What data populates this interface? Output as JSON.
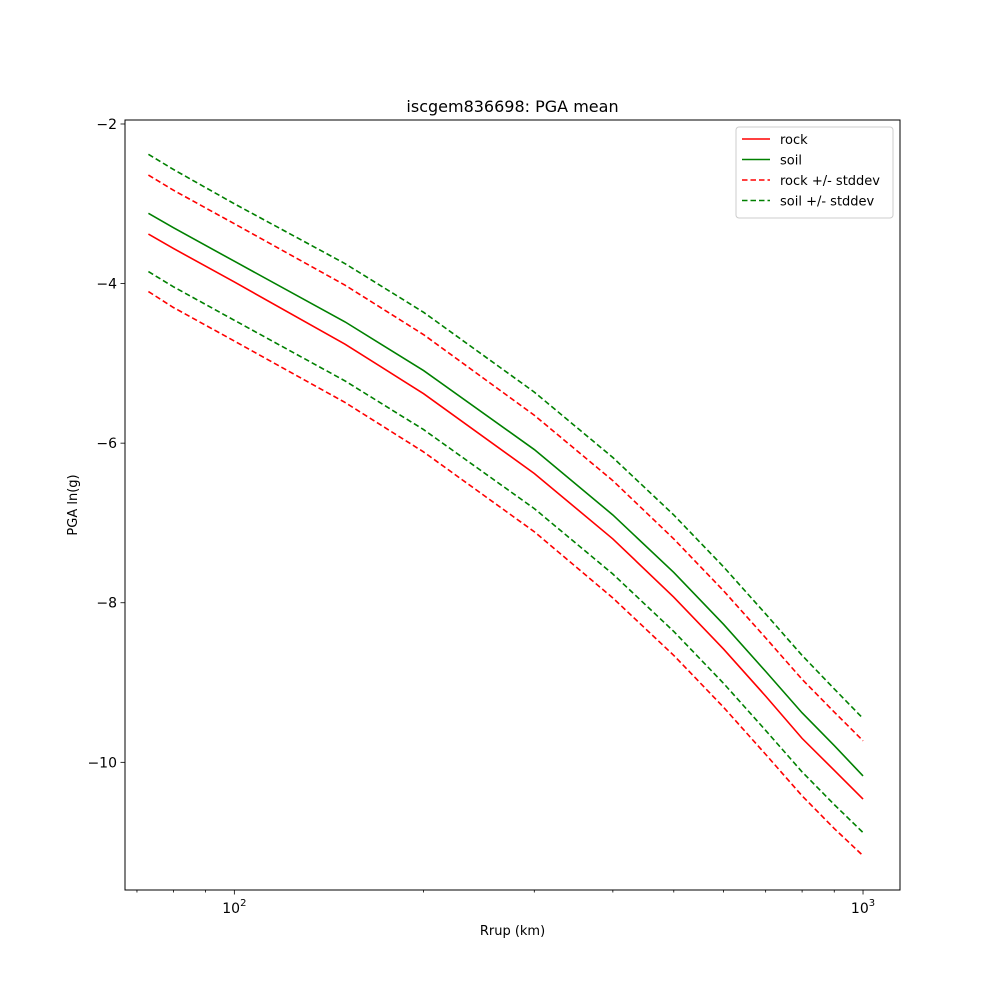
{
  "chart_data": {
    "type": "line",
    "title": "iscgem836698: PGA mean",
    "xlabel": "Rrup (km)",
    "ylabel": "PGA ln(g)",
    "xscale": "log",
    "xlim": [
      67,
      1145
    ],
    "ylim": [
      -11.6,
      -1.95
    ],
    "yticks": [
      -2,
      -4,
      -6,
      -8,
      -10
    ],
    "ytick_labels": [
      "−2",
      "−4",
      "−6",
      "−8",
      "−10"
    ],
    "xticks_major": [
      {
        "value": 100,
        "base": "10",
        "exp": "2"
      },
      {
        "value": 1000,
        "base": "10",
        "exp": "3"
      }
    ],
    "xticks_minor": [
      70,
      80,
      90,
      200,
      300,
      400,
      500,
      600,
      700,
      800,
      900
    ],
    "grid": false,
    "legend_position": "top-right",
    "x": [
      73,
      80,
      100,
      150,
      200,
      300,
      400,
      500,
      600,
      700,
      800,
      900,
      1000
    ],
    "series": [
      {
        "name": "rock",
        "color": "#ff0000",
        "dash": false,
        "values": [
          -3.38,
          -3.56,
          -3.98,
          -4.76,
          -5.38,
          -6.38,
          -7.2,
          -7.93,
          -8.58,
          -9.17,
          -9.7,
          -10.1,
          -10.46
        ]
      },
      {
        "name": "soil",
        "color": "#008000",
        "dash": false,
        "values": [
          -3.12,
          -3.3,
          -3.72,
          -4.48,
          -5.09,
          -6.08,
          -6.9,
          -7.62,
          -8.27,
          -8.86,
          -9.38,
          -9.79,
          -10.17
        ]
      },
      {
        "name": "rock +/- stddev",
        "color": "#ff0000",
        "dash": true,
        "values": [
          -2.64,
          -2.83,
          -3.25,
          -4.02,
          -4.64,
          -5.65,
          -6.47,
          -7.2,
          -7.85,
          -8.44,
          -8.96,
          -9.37,
          -9.73
        ]
      },
      {
        "name": "",
        "color": "#ff0000",
        "dash": true,
        "values": [
          -4.1,
          -4.3,
          -4.72,
          -5.49,
          -6.11,
          -7.11,
          -7.94,
          -8.66,
          -9.31,
          -9.9,
          -10.42,
          -10.83,
          -11.17
        ]
      },
      {
        "name": "soil +/- stddev",
        "color": "#008000",
        "dash": true,
        "values": [
          -2.38,
          -2.57,
          -3.0,
          -3.75,
          -4.36,
          -5.36,
          -6.18,
          -6.9,
          -7.55,
          -8.14,
          -8.66,
          -9.08,
          -9.45
        ]
      },
      {
        "name": "",
        "color": "#008000",
        "dash": true,
        "values": [
          -3.85,
          -4.04,
          -4.46,
          -5.22,
          -5.83,
          -6.82,
          -7.64,
          -8.36,
          -9.01,
          -9.6,
          -10.12,
          -10.53,
          -10.88
        ]
      }
    ],
    "legend": [
      {
        "label": "rock",
        "color": "#ff0000",
        "dash": false
      },
      {
        "label": "soil",
        "color": "#008000",
        "dash": false
      },
      {
        "label": "rock +/- stddev",
        "color": "#ff0000",
        "dash": true
      },
      {
        "label": "soil +/- stddev",
        "color": "#008000",
        "dash": true
      }
    ]
  }
}
